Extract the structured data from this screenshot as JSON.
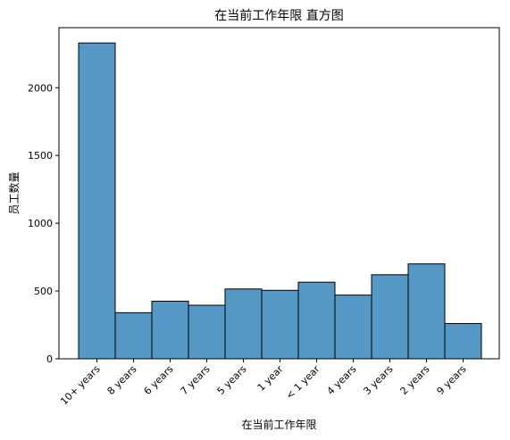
{
  "chart_data": {
    "type": "bar",
    "title": "在当前工作年限 直方图",
    "xlabel": "在当前工作年限",
    "ylabel": "员工数量",
    "categories": [
      "10+ years",
      "8 years",
      "6 years",
      "7 years",
      "5 years",
      "1 year",
      "< 1 year",
      "4 years",
      "3 years",
      "2 years",
      "9 years"
    ],
    "values": [
      2330,
      340,
      425,
      395,
      515,
      505,
      565,
      470,
      620,
      700,
      260
    ],
    "ylim": [
      0,
      2443
    ],
    "yticks": [
      0,
      500,
      1000,
      1500,
      2000
    ],
    "grid": false,
    "legend": "none",
    "colors": {
      "bar_fill": "#5598c6",
      "bar_edge": "#000000",
      "axis": "#000000"
    }
  }
}
